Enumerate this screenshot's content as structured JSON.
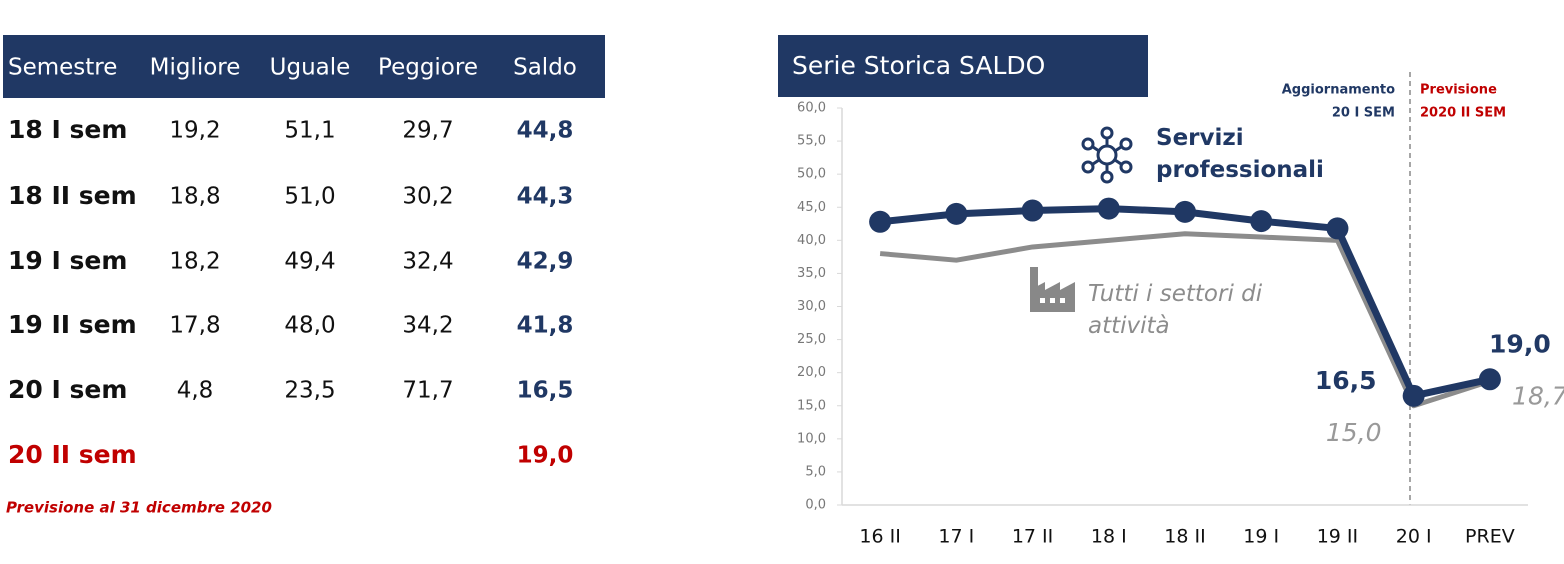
{
  "table": {
    "header": [
      "Semestre",
      "Migliore",
      "Uguale",
      "Peggiore",
      "Saldo"
    ],
    "rows": [
      [
        "18 I sem",
        "19,2",
        "51,1",
        "29,7",
        "44,8"
      ],
      [
        "18 II sem",
        "18,8",
        "51,0",
        "30,2",
        "44,3"
      ],
      [
        "19 I sem",
        "18,2",
        "49,4",
        "32,4",
        "42,9"
      ],
      [
        "19 II sem",
        "17,8",
        "48,0",
        "34,2",
        "41,8"
      ],
      [
        "20 I sem",
        "4,8",
        "23,5",
        "71,7",
        "16,5"
      ]
    ],
    "forecast": {
      "label": "20 II sem",
      "saldo": "19,0"
    },
    "note": "Previsione al 31 dicembre 2020"
  },
  "chart_data": {
    "type": "line",
    "title": "Serie Storica SALDO",
    "categories": [
      "16 II",
      "17 I",
      "17 II",
      "18 I",
      "18 II",
      "19 I",
      "19 II",
      "20 I",
      "PREV"
    ],
    "series": [
      {
        "name": "Servizi professionali",
        "color": "#203864",
        "markers": true,
        "values": [
          42.8,
          44.0,
          44.5,
          44.8,
          44.3,
          42.9,
          41.8,
          16.5,
          19.0
        ],
        "value_labels": [
          null,
          null,
          null,
          null,
          null,
          null,
          null,
          "16,5",
          "19,0"
        ]
      },
      {
        "name": "Tutti i settori di attività",
        "color": "#8c8c8c",
        "markers": false,
        "values": [
          38.0,
          37.0,
          39.0,
          40.0,
          41.0,
          40.5,
          40.0,
          15.0,
          18.7
        ],
        "value_labels": [
          null,
          null,
          null,
          null,
          null,
          null,
          null,
          "15,0",
          "18,7"
        ]
      }
    ],
    "ylim": [
      0,
      60
    ],
    "yticks": [
      {
        "value": 0,
        "label": "0,0"
      },
      {
        "value": 5,
        "label": "5,0"
      },
      {
        "value": 10,
        "label": "10,0"
      },
      {
        "value": 15,
        "label": "15,0"
      },
      {
        "value": 20,
        "label": "20,0"
      },
      {
        "value": 25,
        "label": "25,0"
      },
      {
        "value": 30,
        "label": "30,0"
      },
      {
        "value": 35,
        "label": "35,0"
      },
      {
        "value": 40,
        "label": "40,0"
      },
      {
        "value": 45,
        "label": "45,0"
      },
      {
        "value": 50,
        "label": "50,0"
      },
      {
        "value": 55,
        "label": "55,0"
      },
      {
        "value": 60,
        "label": "60,0"
      }
    ],
    "annotations": [
      {
        "lines": [
          "Aggiornamento",
          "20 I SEM"
        ],
        "color": "#203864"
      },
      {
        "lines": [
          "Previsione",
          "2020 II SEM"
        ],
        "color": "#c00000"
      }
    ]
  }
}
